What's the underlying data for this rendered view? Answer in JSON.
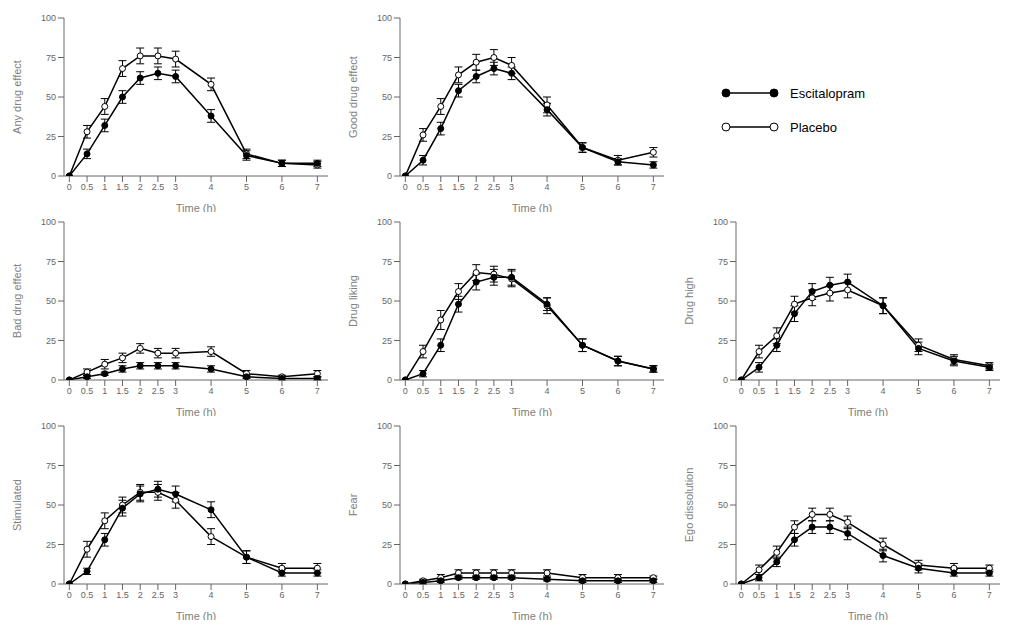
{
  "chart_data": [
    {
      "type": "line",
      "xlabel": "Time (h)",
      "ylabel": "Any drug effect",
      "x": [
        0,
        0.5,
        1,
        1.5,
        2,
        2.5,
        3,
        4,
        5,
        6,
        7
      ],
      "xlim": [
        -0.15,
        7.3
      ],
      "xticks": [
        0,
        0.5,
        1,
        1.5,
        2,
        2.5,
        3,
        4,
        5,
        6,
        7
      ],
      "ylim": [
        0,
        100
      ],
      "yticks": [
        0,
        25,
        50,
        75,
        100
      ],
      "series": [
        {
          "name": "Placebo",
          "color": "#000000",
          "marker": "circle-open",
          "values": [
            0,
            28,
            44,
            68,
            76,
            76,
            74,
            58,
            14,
            8,
            7
          ],
          "errors": [
            0,
            4,
            5,
            5,
            5,
            5,
            5,
            4,
            3,
            2,
            2
          ]
        },
        {
          "name": "Escitalopram",
          "color": "#000000",
          "marker": "circle-filled",
          "values": [
            0,
            14,
            32,
            50,
            62,
            65,
            63,
            38,
            13,
            8,
            8
          ],
          "errors": [
            0,
            3,
            4,
            4,
            4,
            4,
            4,
            4,
            3,
            2,
            2
          ]
        }
      ]
    },
    {
      "type": "line",
      "xlabel": "Time (h)",
      "ylabel": "Good drug effect",
      "x": [
        0,
        0.5,
        1,
        1.5,
        2,
        2.5,
        3,
        4,
        5,
        6,
        7
      ],
      "xlim": [
        -0.15,
        7.3
      ],
      "xticks": [
        0,
        0.5,
        1,
        1.5,
        2,
        2.5,
        3,
        4,
        5,
        6,
        7
      ],
      "ylim": [
        0,
        100
      ],
      "yticks": [
        0,
        25,
        50,
        75,
        100
      ],
      "series": [
        {
          "name": "Placebo",
          "color": "#000000",
          "marker": "circle-open",
          "values": [
            0,
            26,
            44,
            64,
            72,
            75,
            70,
            45,
            18,
            10,
            15
          ],
          "errors": [
            0,
            4,
            5,
            5,
            5,
            5,
            5,
            5,
            3,
            3,
            3
          ]
        },
        {
          "name": "Escitalopram",
          "color": "#000000",
          "marker": "circle-filled",
          "values": [
            0,
            10,
            30,
            54,
            63,
            68,
            65,
            42,
            18,
            9,
            7
          ],
          "errors": [
            0,
            3,
            4,
            4,
            4,
            4,
            4,
            4,
            3,
            2,
            2
          ]
        }
      ]
    },
    {
      "type": "line",
      "xlabel": "Time (h)",
      "ylabel": "Bad drug effect",
      "x": [
        0,
        0.5,
        1,
        1.5,
        2,
        2.5,
        3,
        4,
        5,
        6,
        7
      ],
      "xlim": [
        -0.15,
        7.3
      ],
      "xticks": [
        0,
        0.5,
        1,
        1.5,
        2,
        2.5,
        3,
        4,
        5,
        6,
        7
      ],
      "ylim": [
        0,
        100
      ],
      "yticks": [
        0,
        25,
        50,
        75,
        100
      ],
      "series": [
        {
          "name": "Placebo",
          "color": "#000000",
          "marker": "circle-open",
          "values": [
            0,
            5,
            10,
            14,
            20,
            17,
            17,
            18,
            4,
            2,
            4
          ],
          "errors": [
            0,
            2,
            3,
            3,
            3,
            3,
            3,
            3,
            2,
            1,
            2
          ]
        },
        {
          "name": "Escitalopram",
          "color": "#000000",
          "marker": "circle-filled",
          "values": [
            0,
            2,
            4,
            7,
            9,
            9,
            9,
            7,
            2,
            1,
            1
          ],
          "errors": [
            0,
            1,
            1,
            2,
            2,
            2,
            2,
            2,
            1,
            1,
            1
          ]
        }
      ]
    },
    {
      "type": "line",
      "xlabel": "Time (h)",
      "ylabel": "Drug liking",
      "x": [
        0,
        0.5,
        1,
        1.5,
        2,
        2.5,
        3,
        4,
        5,
        6,
        7
      ],
      "xlim": [
        -0.15,
        7.3
      ],
      "xticks": [
        0,
        0.5,
        1,
        1.5,
        2,
        2.5,
        3,
        4,
        5,
        6,
        7
      ],
      "ylim": [
        0,
        100
      ],
      "yticks": [
        0,
        25,
        50,
        75,
        100
      ],
      "series": [
        {
          "name": "Placebo",
          "color": "#000000",
          "marker": "circle-open",
          "values": [
            0,
            18,
            38,
            56,
            68,
            67,
            64,
            47,
            22,
            12,
            7
          ],
          "errors": [
            0,
            4,
            6,
            5,
            5,
            5,
            5,
            5,
            4,
            3,
            2
          ]
        },
        {
          "name": "Escitalopram",
          "color": "#000000",
          "marker": "circle-filled",
          "values": [
            0,
            4,
            22,
            48,
            62,
            65,
            65,
            48,
            22,
            12,
            7
          ],
          "errors": [
            0,
            2,
            4,
            5,
            5,
            5,
            5,
            4,
            4,
            3,
            2
          ]
        }
      ]
    },
    {
      "type": "line",
      "xlabel": "Time (h)",
      "ylabel": "Drug high",
      "x": [
        0,
        0.5,
        1,
        1.5,
        2,
        2.5,
        3,
        4,
        5,
        6,
        7
      ],
      "xlim": [
        -0.15,
        7.3
      ],
      "xticks": [
        0,
        0.5,
        1,
        1.5,
        2,
        2.5,
        3,
        4,
        5,
        6,
        7
      ],
      "ylim": [
        0,
        100
      ],
      "yticks": [
        0,
        25,
        50,
        75,
        100
      ],
      "series": [
        {
          "name": "Placebo",
          "color": "#000000",
          "marker": "circle-open",
          "values": [
            0,
            18,
            28,
            48,
            52,
            55,
            57,
            47,
            22,
            13,
            9
          ],
          "errors": [
            0,
            4,
            5,
            5,
            5,
            5,
            5,
            5,
            4,
            3,
            2
          ]
        },
        {
          "name": "Escitalopram",
          "color": "#000000",
          "marker": "circle-filled",
          "values": [
            0,
            8,
            22,
            42,
            56,
            60,
            62,
            47,
            20,
            12,
            8
          ],
          "errors": [
            0,
            3,
            4,
            5,
            5,
            5,
            5,
            5,
            4,
            3,
            2
          ]
        }
      ]
    },
    {
      "type": "line",
      "xlabel": "Time (h)",
      "ylabel": "Stimulated",
      "x": [
        0,
        0.5,
        1,
        1.5,
        2,
        2.5,
        3,
        4,
        5,
        6,
        7
      ],
      "xlim": [
        -0.15,
        7.3
      ],
      "xticks": [
        0,
        0.5,
        1,
        1.5,
        2,
        2.5,
        3,
        4,
        5,
        6,
        7
      ],
      "ylim": [
        0,
        100
      ],
      "yticks": [
        0,
        25,
        50,
        75,
        100
      ],
      "series": [
        {
          "name": "Placebo",
          "color": "#000000",
          "marker": "circle-open",
          "values": [
            0,
            22,
            40,
            50,
            58,
            58,
            53,
            30,
            17,
            10,
            10
          ],
          "errors": [
            0,
            5,
            5,
            5,
            5,
            5,
            5,
            5,
            4,
            3,
            3
          ]
        },
        {
          "name": "Escitalopram",
          "color": "#000000",
          "marker": "circle-filled",
          "values": [
            0,
            8,
            28,
            48,
            57,
            60,
            57,
            47,
            17,
            7,
            7
          ],
          "errors": [
            0,
            2,
            4,
            5,
            5,
            5,
            5,
            5,
            4,
            2,
            2
          ]
        }
      ]
    },
    {
      "type": "line",
      "xlabel": "Time (h)",
      "ylabel": "Fear",
      "x": [
        0,
        0.5,
        1,
        1.5,
        2,
        2.5,
        3,
        4,
        5,
        6,
        7
      ],
      "xlim": [
        -0.15,
        7.3
      ],
      "xticks": [
        0,
        0.5,
        1,
        1.5,
        2,
        2.5,
        3,
        4,
        5,
        6,
        7
      ],
      "ylim": [
        0,
        100
      ],
      "yticks": [
        0,
        25,
        50,
        75,
        100
      ],
      "series": [
        {
          "name": "Placebo",
          "color": "#000000",
          "marker": "circle-open",
          "values": [
            0,
            2,
            4,
            7,
            7,
            7,
            7,
            7,
            4,
            4,
            4
          ],
          "errors": [
            0,
            1,
            2,
            2,
            2,
            2,
            2,
            2,
            2,
            2,
            1
          ]
        },
        {
          "name": "Escitalopram",
          "color": "#000000",
          "marker": "circle-filled",
          "values": [
            0,
            1,
            2,
            4,
            4,
            4,
            4,
            3,
            2,
            2,
            2
          ],
          "errors": [
            0,
            1,
            1,
            1,
            1,
            1,
            1,
            1,
            1,
            1,
            1
          ]
        }
      ]
    },
    {
      "type": "line",
      "xlabel": "Time (h)",
      "ylabel": "Ego dissolution",
      "x": [
        0,
        0.5,
        1,
        1.5,
        2,
        2.5,
        3,
        4,
        5,
        6,
        7
      ],
      "xlim": [
        -0.15,
        7.3
      ],
      "xticks": [
        0,
        0.5,
        1,
        1.5,
        2,
        2.5,
        3,
        4,
        5,
        6,
        7
      ],
      "ylim": [
        0,
        100
      ],
      "yticks": [
        0,
        25,
        50,
        75,
        100
      ],
      "series": [
        {
          "name": "Placebo",
          "color": "#000000",
          "marker": "circle-open",
          "values": [
            0,
            9,
            20,
            36,
            44,
            44,
            39,
            25,
            12,
            10,
            10
          ],
          "errors": [
            0,
            3,
            4,
            4,
            4,
            4,
            4,
            4,
            3,
            3,
            2
          ]
        },
        {
          "name": "Escitalopram",
          "color": "#000000",
          "marker": "circle-filled",
          "values": [
            0,
            4,
            14,
            28,
            36,
            36,
            32,
            18,
            10,
            7,
            7
          ],
          "errors": [
            0,
            2,
            3,
            4,
            4,
            4,
            4,
            4,
            3,
            2,
            2
          ]
        }
      ]
    }
  ]
}
